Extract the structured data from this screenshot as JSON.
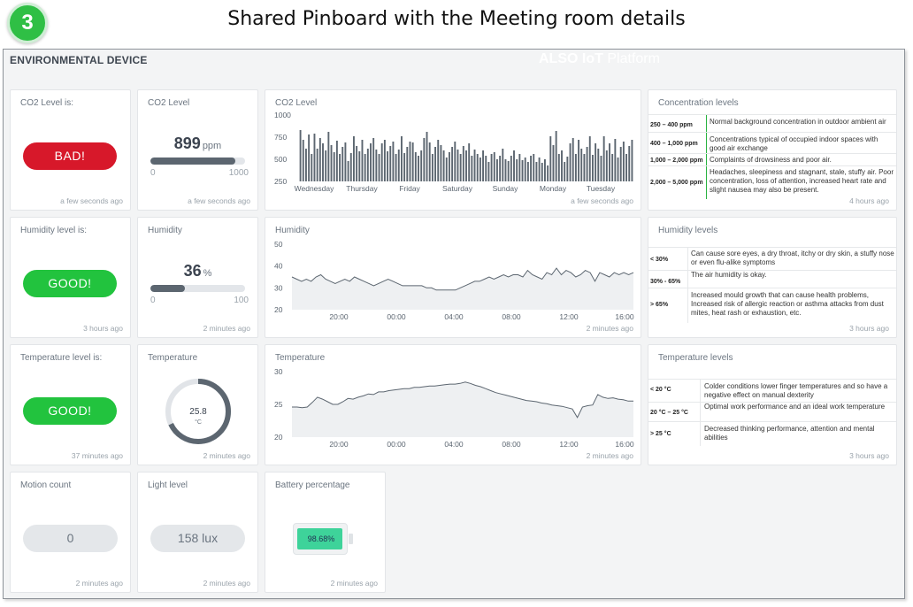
{
  "header": {
    "step_number": "3",
    "page_title": "Shared Pinboard with the Meeting room details"
  },
  "app": {
    "device_title": "ENVIRONMENTAL DEVICE",
    "brand_bold": "ALSO IoT",
    "brand_thin": "Platform"
  },
  "co2_status": {
    "title": "CO2 Level is:",
    "status": "BAD!",
    "status_color": "#d7182a",
    "time": "a few seconds ago"
  },
  "co2_level": {
    "title": "CO2 Level",
    "value": "899",
    "unit": "ppm",
    "min": "0",
    "max": "1000",
    "fraction": 0.899,
    "time": "a few seconds ago"
  },
  "co2_chart": {
    "title": "CO2 Level",
    "y_ticks": [
      "1000",
      "750",
      "500",
      "250"
    ],
    "x_labels": [
      "Wednesday",
      "Thursday",
      "Friday",
      "Saturday",
      "Sunday",
      "Monday",
      "Tuesday"
    ],
    "time": "a few seconds ago"
  },
  "concentration": {
    "title": "Concentration levels",
    "rows": [
      {
        "range": "250 – 400 ppm",
        "desc": "Normal background concentration in outdoor ambient air"
      },
      {
        "range": "400 – 1,000 ppm",
        "desc": "Concentrations typical of occupied indoor spaces with good air exchange"
      },
      {
        "range": "1,000 – 2,000 ppm",
        "desc": "Complaints of drowsiness and poor air."
      },
      {
        "range": "2,000 – 5,000 ppm",
        "desc": "Headaches, sleepiness and stagnant, stale, stuffy air. Poor concentration, loss of attention, increased heart rate and slight nausea may also be present."
      }
    ],
    "time": "4 hours ago"
  },
  "humidity_status": {
    "title": "Humidity level is:",
    "status": "GOOD!",
    "status_color": "#22c33e",
    "time": "3 hours ago"
  },
  "humidity_level": {
    "title": "Humidity",
    "value": "36",
    "unit": "%",
    "min": "0",
    "max": "100",
    "fraction": 0.36,
    "time": "2 minutes ago"
  },
  "humidity_chart": {
    "title": "Humidity",
    "y_ticks": [
      "50",
      "40",
      "30",
      "20"
    ],
    "x_labels": [
      "20:00",
      "00:00",
      "04:00",
      "08:00",
      "12:00",
      "16:00"
    ],
    "time": "2 minutes ago"
  },
  "humidity_levels": {
    "title": "Humidity levels",
    "rows": [
      {
        "range": "< 30%",
        "desc": "Can cause sore eyes, a dry throat, itchy or dry skin, a stuffy nose or even flu-alike symptoms"
      },
      {
        "range": "30% - 65%",
        "desc": "The air humidity is okay."
      },
      {
        "range": "> 65%",
        "desc": "Increased mould growth that can cause health problems, Increased risk of allergic reaction or asthma attacks from dust mites, heat rash or exhaustion, etc."
      }
    ],
    "time": "3 hours ago"
  },
  "temperature_status": {
    "title": "Temperature level is:",
    "status": "GOOD!",
    "status_color": "#22c33e",
    "time": "37 minutes ago"
  },
  "temperature_gauge": {
    "title": "Temperature",
    "value": "25.8",
    "unit": "°C",
    "fraction": 0.68,
    "time": "2 minutes ago"
  },
  "temperature_chart": {
    "title": "Temperature",
    "y_ticks": [
      "30",
      "25",
      "20"
    ],
    "x_labels": [
      "20:00",
      "00:00",
      "04:00",
      "08:00",
      "12:00",
      "16:00"
    ],
    "time": "2 minutes ago"
  },
  "temperature_levels": {
    "title": "Temperature levels",
    "rows": [
      {
        "range": "< 20 °C",
        "desc": "Colder conditions lower finger temperatures and so have a negative effect on manual dexterity"
      },
      {
        "range": "20 °C – 25 °C",
        "desc": "Optimal work performance and an ideal work temperature"
      },
      {
        "range": "> 25 °C",
        "desc": "Decreased thinking performance, attention and mental abilities"
      }
    ],
    "time": "3 hours ago"
  },
  "motion": {
    "title": "Motion count",
    "value": "0",
    "time": "2 minutes ago"
  },
  "light": {
    "title": "Light level",
    "value": "158 lux",
    "time": "2 minutes ago"
  },
  "battery": {
    "title": "Battery percentage",
    "value": "98.68%",
    "fraction": 0.9868,
    "color": "#3ed39a",
    "time": "2 minutes ago"
  },
  "chart_data": [
    {
      "type": "bar",
      "title": "CO2 Level",
      "xlabel": "",
      "ylabel": "",
      "ylim": [
        250,
        1000
      ],
      "x_ticks": [
        "Wednesday",
        "Thursday",
        "Friday",
        "Saturday",
        "Sunday",
        "Monday",
        "Tuesday"
      ],
      "values": [
        830,
        720,
        620,
        780,
        560,
        790,
        620,
        740,
        680,
        600,
        810,
        660,
        580,
        710,
        560,
        640,
        690,
        480,
        570,
        760,
        650,
        590,
        720,
        560,
        620,
        680,
        740,
        610,
        560,
        680,
        720,
        590,
        650,
        700,
        560,
        610,
        760,
        570,
        640,
        700,
        690,
        580,
        540,
        600,
        740,
        810,
        690,
        560,
        640,
        720,
        660,
        600,
        520,
        580,
        640,
        700,
        610,
        560,
        650,
        600,
        680,
        540,
        610,
        560,
        520,
        600,
        540,
        470,
        560,
        580,
        500,
        540,
        620,
        500,
        480,
        540,
        600,
        500,
        560,
        490,
        520,
        470,
        540,
        560,
        470,
        520,
        460,
        500,
        430,
        760,
        660,
        820,
        560,
        600,
        470,
        530,
        680,
        740,
        560,
        720,
        620,
        560,
        640,
        760,
        550,
        680,
        620,
        540,
        760,
        600,
        680,
        560,
        730,
        520,
        640,
        700,
        560,
        650,
        720
      ]
    },
    {
      "type": "area",
      "title": "Humidity",
      "xlabel": "",
      "ylabel": "",
      "ylim": [
        20,
        50
      ],
      "x_ticks": [
        "20:00",
        "00:00",
        "04:00",
        "08:00",
        "12:00",
        "16:00"
      ],
      "values": [
        35,
        34,
        33,
        34,
        33,
        35,
        36,
        34,
        33,
        32,
        33,
        34,
        33,
        35,
        34,
        33,
        32,
        31,
        32,
        33,
        34,
        33,
        32,
        31,
        31,
        31,
        31,
        31,
        30,
        30,
        29,
        29,
        29,
        29,
        29,
        30,
        31,
        32,
        33,
        33,
        34,
        35,
        34,
        35,
        36,
        35,
        36,
        36,
        35,
        38,
        36,
        35,
        34,
        37,
        36,
        39,
        36,
        38,
        37,
        35,
        36,
        38,
        37,
        33,
        37,
        36,
        35,
        37,
        36,
        37,
        36,
        37
      ]
    },
    {
      "type": "area",
      "title": "Temperature",
      "xlabel": "",
      "ylabel": "",
      "ylim": [
        20,
        30
      ],
      "x_ticks": [
        "20:00",
        "00:00",
        "04:00",
        "08:00",
        "12:00",
        "16:00"
      ],
      "values": [
        24.6,
        24.6,
        24.5,
        24.6,
        25.3,
        26.1,
        25.8,
        25.4,
        25.0,
        25.0,
        25.4,
        25.9,
        25.8,
        26.1,
        26.3,
        26.6,
        26.5,
        26.9,
        26.9,
        27.1,
        27.2,
        27.3,
        27.4,
        27.4,
        27.6,
        27.6,
        27.7,
        27.8,
        27.8,
        27.9,
        28.0,
        28.1,
        28.1,
        28.2,
        28.4,
        28.2,
        27.9,
        27.7,
        27.4,
        27.1,
        26.8,
        26.6,
        26.4,
        26.2,
        26.0,
        25.8,
        25.6,
        25.5,
        25.4,
        25.2,
        25.1,
        24.9,
        24.8,
        24.7,
        24.5,
        24.3,
        23.0,
        24.6,
        24.8,
        24.9,
        26.5,
        26.1,
        25.9,
        26.0,
        25.8,
        25.7,
        25.5,
        25.5
      ]
    }
  ]
}
